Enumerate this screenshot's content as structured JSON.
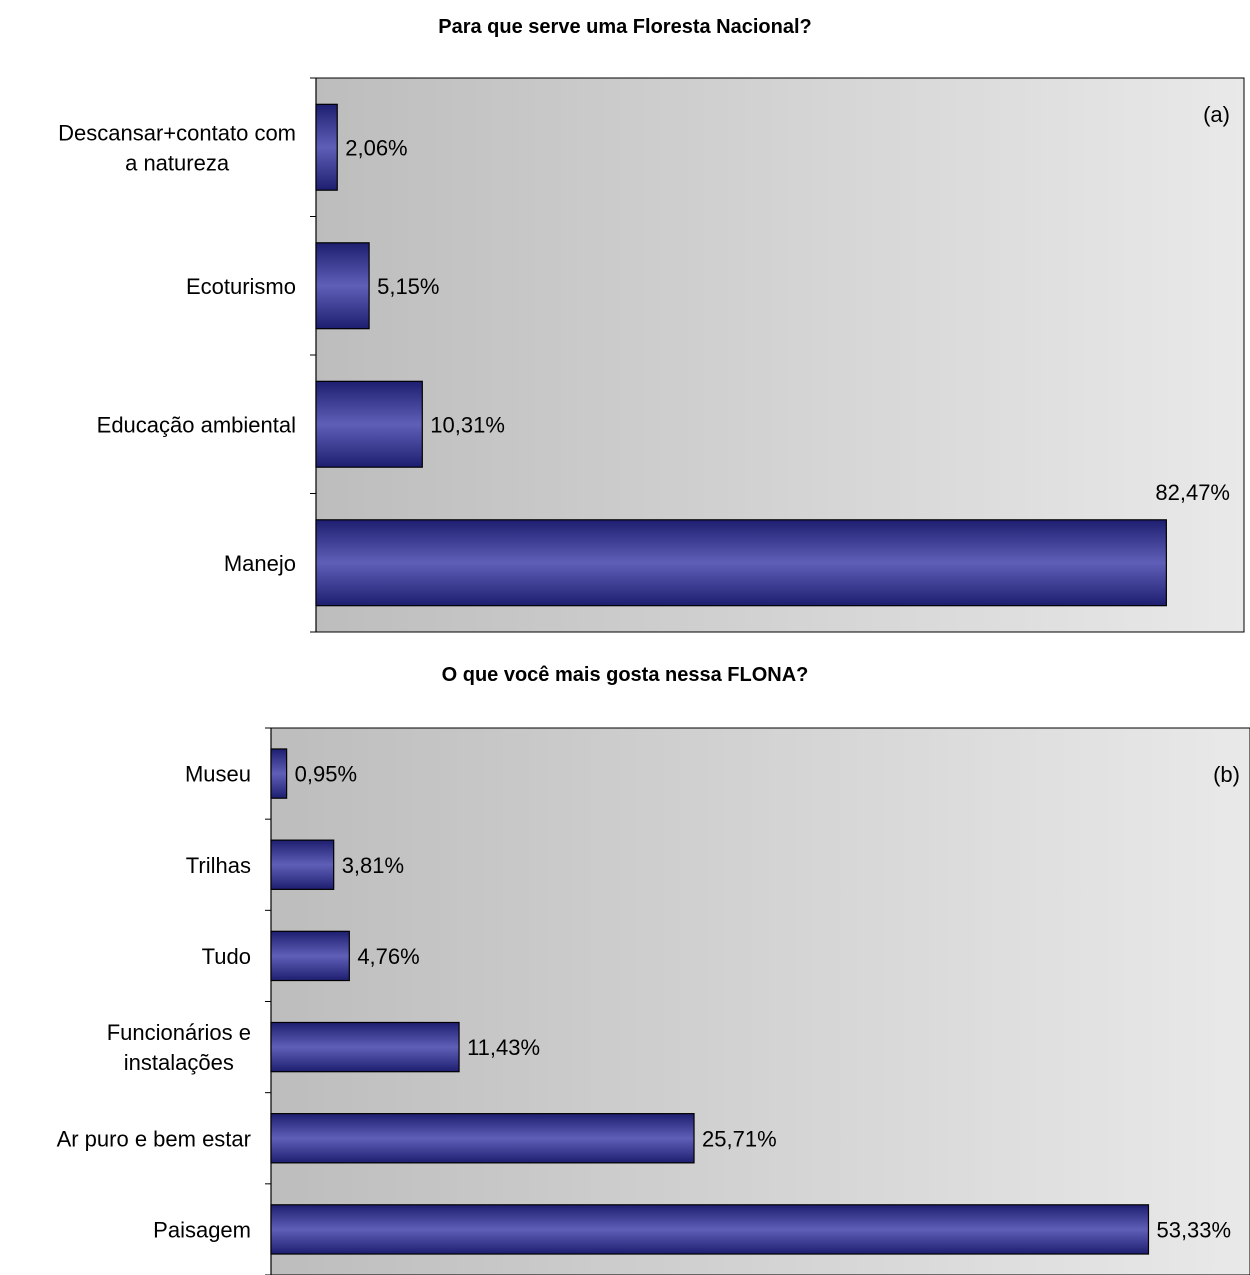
{
  "chart_data": [
    {
      "type": "bar",
      "orientation": "horizontal",
      "title": "Para que serve uma Floresta Nacional?",
      "panel_label": "(a)",
      "categories": [
        [
          "Descansar+contato com",
          "a natureza"
        ],
        [
          "Ecoturismo"
        ],
        [
          "Educação ambiental"
        ],
        [
          "Manejo"
        ]
      ],
      "values": [
        2.06,
        5.15,
        10.31,
        82.47
      ],
      "value_labels": [
        "2,06%",
        "5,15%",
        "10,31%",
        "82,47%"
      ],
      "xlim": [
        0,
        90
      ],
      "colors": {
        "bar": "#3b3b9e",
        "bar_highlight": "#5a5ab4",
        "background_dark": "#c0c0c0",
        "background_light": "#e8e8e8"
      }
    },
    {
      "type": "bar",
      "orientation": "horizontal",
      "title": "O que você mais gosta nessa FLONA?",
      "panel_label": "(b)",
      "categories": [
        [
          "Museu"
        ],
        [
          "Trilhas"
        ],
        [
          "Tudo"
        ],
        [
          "Funcionários e",
          "instalações"
        ],
        [
          "Ar puro e bem estar"
        ],
        [
          "Paisagem"
        ]
      ],
      "values": [
        0.95,
        3.81,
        4.76,
        11.43,
        25.71,
        53.33
      ],
      "value_labels": [
        "0,95%",
        "3,81%",
        "4,76%",
        "11,43%",
        "25,71%",
        "53,33%"
      ],
      "xlim": [
        0,
        59.5
      ],
      "colors": {
        "bar": "#3b3b9e",
        "bar_highlight": "#5a5ab4",
        "background_dark": "#c0c0c0",
        "background_light": "#e8e8e8"
      }
    }
  ]
}
